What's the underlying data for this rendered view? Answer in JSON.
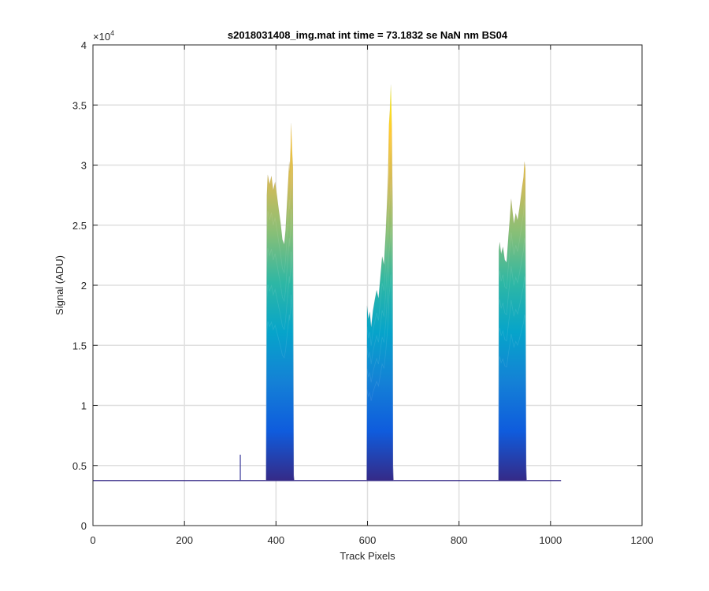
{
  "chart_data": {
    "type": "area",
    "title": "s2018031408_img.mat int time = 73.1832 se  NaN nm BS04",
    "xlabel": "Track Pixels",
    "ylabel": "Signal (ADU)",
    "y_exponent_label": "×10",
    "y_exponent_power": "4",
    "xlim": [
      0,
      1200
    ],
    "ylim": [
      0,
      40000
    ],
    "x_ticks": [
      0,
      200,
      400,
      600,
      800,
      1000,
      1200
    ],
    "x_tick_labels": [
      "0",
      "200",
      "400",
      "600",
      "800",
      "1000",
      "1200"
    ],
    "y_ticks": [
      0,
      5000,
      10000,
      15000,
      20000,
      25000,
      30000,
      35000,
      40000
    ],
    "y_tick_labels": [
      "0",
      "0.5",
      "1",
      "1.5",
      "2",
      "2.5",
      "3",
      "3.5",
      "4"
    ],
    "grid": true,
    "colormap": [
      "#352a87",
      "#0f5cdd",
      "#1481d6",
      "#06a4ca",
      "#2eb7a4",
      "#87bf77",
      "#d1bb59",
      "#fec832",
      "#f9fb0e"
    ],
    "baseline": 3750,
    "x_range": [
      0,
      1023
    ],
    "spike": {
      "x": 322,
      "y": 5900
    },
    "peaks": [
      {
        "x_start": 378,
        "x_end": 440,
        "profile": [
          [
            378,
            3800
          ],
          [
            380,
            27500
          ],
          [
            382,
            29200
          ],
          [
            386,
            28400
          ],
          [
            390,
            29100
          ],
          [
            394,
            27900
          ],
          [
            398,
            28600
          ],
          [
            402,
            27500
          ],
          [
            406,
            26300
          ],
          [
            410,
            25200
          ],
          [
            414,
            23800
          ],
          [
            418,
            23400
          ],
          [
            421,
            24600
          ],
          [
            424,
            26800
          ],
          [
            427,
            28900
          ],
          [
            429,
            30300
          ],
          [
            430,
            29400
          ],
          [
            432,
            31500
          ],
          [
            433,
            33500
          ],
          [
            435,
            31400
          ],
          [
            437,
            29800
          ],
          [
            439,
            4200
          ],
          [
            440,
            3800
          ]
        ]
      },
      {
        "x_start": 598,
        "x_end": 657,
        "profile": [
          [
            598,
            3800
          ],
          [
            599,
            18300
          ],
          [
            602,
            17200
          ],
          [
            605,
            17800
          ],
          [
            608,
            16500
          ],
          [
            612,
            17900
          ],
          [
            616,
            18800
          ],
          [
            620,
            19600
          ],
          [
            624,
            18900
          ],
          [
            628,
            20600
          ],
          [
            632,
            22400
          ],
          [
            636,
            21700
          ],
          [
            640,
            24500
          ],
          [
            643,
            27200
          ],
          [
            645,
            29300
          ],
          [
            647,
            33400
          ],
          [
            649,
            34600
          ],
          [
            651,
            36700
          ],
          [
            653,
            33400
          ],
          [
            655,
            26500
          ],
          [
            656,
            5000
          ],
          [
            657,
            3800
          ]
        ]
      },
      {
        "x_start": 886,
        "x_end": 948,
        "profile": [
          [
            886,
            3800
          ],
          [
            887,
            22900
          ],
          [
            889,
            23600
          ],
          [
            892,
            22600
          ],
          [
            896,
            23200
          ],
          [
            900,
            22100
          ],
          [
            904,
            21900
          ],
          [
            908,
            24100
          ],
          [
            911,
            25500
          ],
          [
            914,
            27200
          ],
          [
            917,
            26100
          ],
          [
            920,
            25100
          ],
          [
            924,
            26000
          ],
          [
            928,
            25400
          ],
          [
            932,
            26400
          ],
          [
            935,
            27300
          ],
          [
            938,
            28200
          ],
          [
            941,
            29000
          ],
          [
            943,
            30300
          ],
          [
            945,
            29700
          ],
          [
            947,
            5000
          ],
          [
            948,
            3800
          ]
        ]
      }
    ]
  }
}
